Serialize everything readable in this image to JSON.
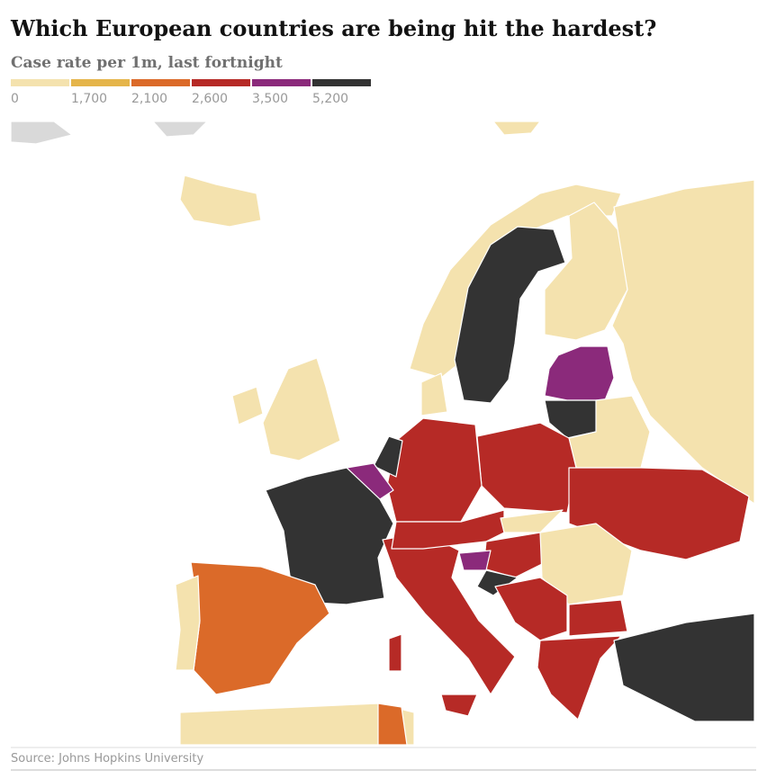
{
  "header": {
    "title": "Which European countries are being hit the hardest?",
    "subtitle": "Case rate per 1m, last fortnight"
  },
  "legend": {
    "ticks": [
      0,
      {
        "value": 1700,
        "label": "1,700"
      },
      {
        "value": 2100,
        "label": "2,100"
      },
      {
        "value": 2600,
        "label": "2,600"
      },
      {
        "value": 3500,
        "label": "3,500"
      },
      {
        "value": 5200,
        "label": "5,200"
      }
    ],
    "colors": [
      "#f4e2ae",
      "#e5b54a",
      "#db6a29",
      "#b62a26",
      "#8b2a7b",
      "#333333"
    ]
  },
  "source": "Source: Johns Hopkins University"
}
